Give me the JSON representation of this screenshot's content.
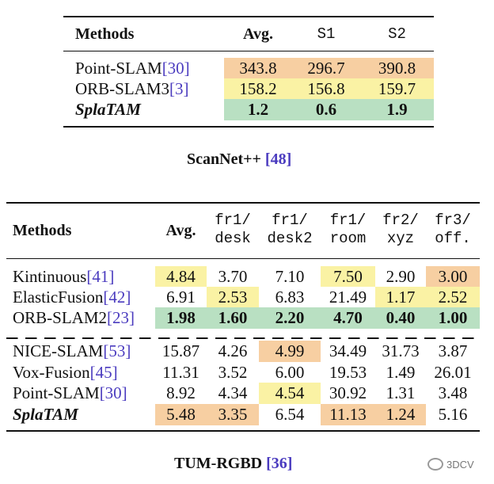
{
  "table1": {
    "headers": [
      "Methods",
      "Avg.",
      "S1",
      "S2"
    ],
    "rows": [
      {
        "method": "Point-SLAM ",
        "cite": "[30]",
        "values": [
          "343.8",
          "296.7",
          "390.8"
        ]
      },
      {
        "method": "ORB-SLAM3 ",
        "cite": "[3]",
        "values": [
          "158.2",
          "156.8",
          "159.7"
        ]
      },
      {
        "method": "SplaTAM",
        "cite": "",
        "values": [
          "1.2",
          "0.6",
          "1.9"
        ]
      }
    ],
    "caption": "ScanNet++ ",
    "caption_cite": "[48]",
    "highlight_colors": {
      "orange": "#f7cfa2",
      "yellow": "#faf2a4",
      "green": "#b9e0c2"
    }
  },
  "table2": {
    "headers": {
      "methods": "Methods",
      "avg": "Avg.",
      "cols": [
        {
          "line1": "fr1/",
          "line2": "desk"
        },
        {
          "line1": "fr1/",
          "line2": "desk2"
        },
        {
          "line1": "fr1/",
          "line2": "room"
        },
        {
          "line1": "fr2/",
          "line2": "xyz"
        },
        {
          "line1": "fr3/",
          "line2": "off."
        }
      ]
    },
    "rows": [
      {
        "method": "Kintinuous ",
        "cite": "[41]",
        "values": [
          "4.84",
          "3.70",
          "7.10",
          "7.50",
          "2.90",
          "3.00"
        ]
      },
      {
        "method": "ElasticFusion ",
        "cite": "[42]",
        "values": [
          "6.91",
          "2.53",
          "6.83",
          "21.49",
          "1.17",
          "2.52"
        ]
      },
      {
        "method": "ORB-SLAM2 ",
        "cite": "[23]",
        "values": [
          "1.98",
          "1.60",
          "2.20",
          "4.70",
          "0.40",
          "1.00"
        ]
      },
      {
        "method": "NICE-SLAM ",
        "cite": "[53]",
        "values": [
          "15.87",
          "4.26",
          "4.99",
          "34.49",
          "31.73",
          "3.87"
        ]
      },
      {
        "method": "Vox-Fusion ",
        "cite": "[45]",
        "values": [
          "11.31",
          "3.52",
          "6.00",
          "19.53",
          "1.49",
          "26.01"
        ]
      },
      {
        "method": "Point-SLAM ",
        "cite": "[30]",
        "values": [
          "8.92",
          "4.34",
          "4.54",
          "30.92",
          "1.31",
          "3.48"
        ]
      },
      {
        "method": "SplaTAM",
        "cite": "",
        "values": [
          "5.48",
          "3.35",
          "6.54",
          "11.13",
          "1.24",
          "5.16"
        ]
      }
    ],
    "caption": "TUM-RGBD ",
    "caption_cite": "[36]"
  },
  "watermark": {
    "text": "3DCV",
    "icon": "wechat-icon"
  }
}
